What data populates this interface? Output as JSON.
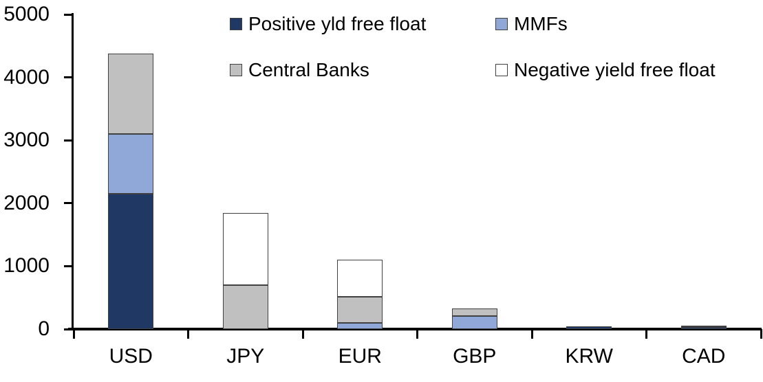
{
  "chart_data": {
    "type": "bar",
    "stacked": true,
    "title": "",
    "xlabel": "",
    "ylabel": "",
    "categories": [
      "USD",
      "JPY",
      "EUR",
      "GBP",
      "KRW",
      "CAD"
    ],
    "series": [
      {
        "name": "Positive yld free float",
        "color": "#203864",
        "values": [
          2150,
          0,
          0,
          0,
          40,
          30
        ]
      },
      {
        "name": "MMFs",
        "color": "#8FA8D8",
        "values": [
          950,
          0,
          100,
          210,
          0,
          0
        ]
      },
      {
        "name": "Central Banks",
        "color": "#C0C0C0",
        "values": [
          1280,
          700,
          410,
          120,
          0,
          25
        ]
      },
      {
        "name": "Negative yield free float",
        "color": "#FFFFFF",
        "values": [
          0,
          1140,
          590,
          0,
          0,
          0
        ]
      }
    ],
    "ylim": [
      0,
      5000
    ],
    "yticks": [
      "0",
      "1000",
      "2000",
      "3000",
      "4000",
      "5000"
    ],
    "grid": false,
    "legend_position": "top",
    "axis_color": "#000000",
    "segment_border_color": "#404040"
  }
}
